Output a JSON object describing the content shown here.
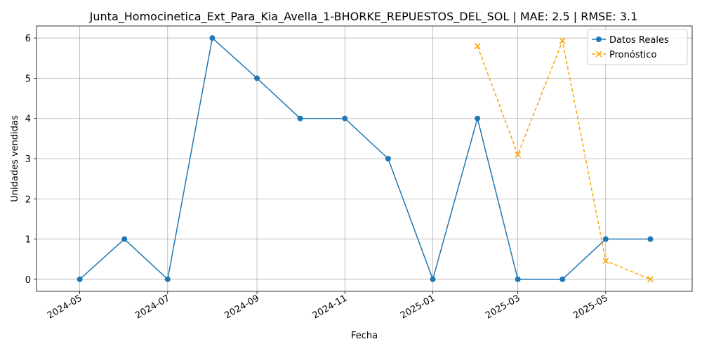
{
  "chart_data": {
    "type": "line",
    "title": "Junta_Homocinetica_Ext_Para_Kia_Avella_1-BHORKE_REPUESTOS_DEL_SOL | MAE: 2.5 | RMSE: 3.1",
    "xlabel": "Fecha",
    "ylabel": "Unidades vendidas",
    "grid": true,
    "legend_position": "top-right",
    "x_range": [
      "2024-04-01",
      "2025-06-30"
    ],
    "ylim": [
      -0.3,
      6.3
    ],
    "x_ticks": [
      {
        "date": "2024-05-01",
        "label": "2024-05"
      },
      {
        "date": "2024-07-01",
        "label": "2024-07"
      },
      {
        "date": "2024-09-01",
        "label": "2024-09"
      },
      {
        "date": "2024-11-01",
        "label": "2024-11"
      },
      {
        "date": "2025-01-01",
        "label": "2025-01"
      },
      {
        "date": "2025-03-01",
        "label": "2025-03"
      },
      {
        "date": "2025-05-01",
        "label": "2025-05"
      }
    ],
    "y_ticks": [
      0,
      1,
      2,
      3,
      4,
      5,
      6
    ],
    "series": [
      {
        "name": "Datos Reales",
        "color": "#1f77b4",
        "style": "solid",
        "marker": "circle",
        "x": [
          "2024-05-01",
          "2024-06-01",
          "2024-07-01",
          "2024-08-01",
          "2024-09-01",
          "2024-10-01",
          "2024-11-01",
          "2024-12-01",
          "2025-01-01",
          "2025-02-01",
          "2025-03-01",
          "2025-04-01",
          "2025-05-01",
          "2025-06-01"
        ],
        "values": [
          0,
          1,
          0,
          6,
          5,
          4,
          4,
          3,
          0,
          4,
          0,
          0,
          1,
          1
        ]
      },
      {
        "name": "Pronóstico",
        "color": "#ffa500",
        "style": "dashed",
        "marker": "x",
        "x": [
          "2025-02-01",
          "2025-03-01",
          "2025-04-01",
          "2025-05-01",
          "2025-06-01"
        ],
        "values": [
          5.8,
          3.1,
          5.93,
          0.46,
          0.0
        ]
      }
    ]
  }
}
